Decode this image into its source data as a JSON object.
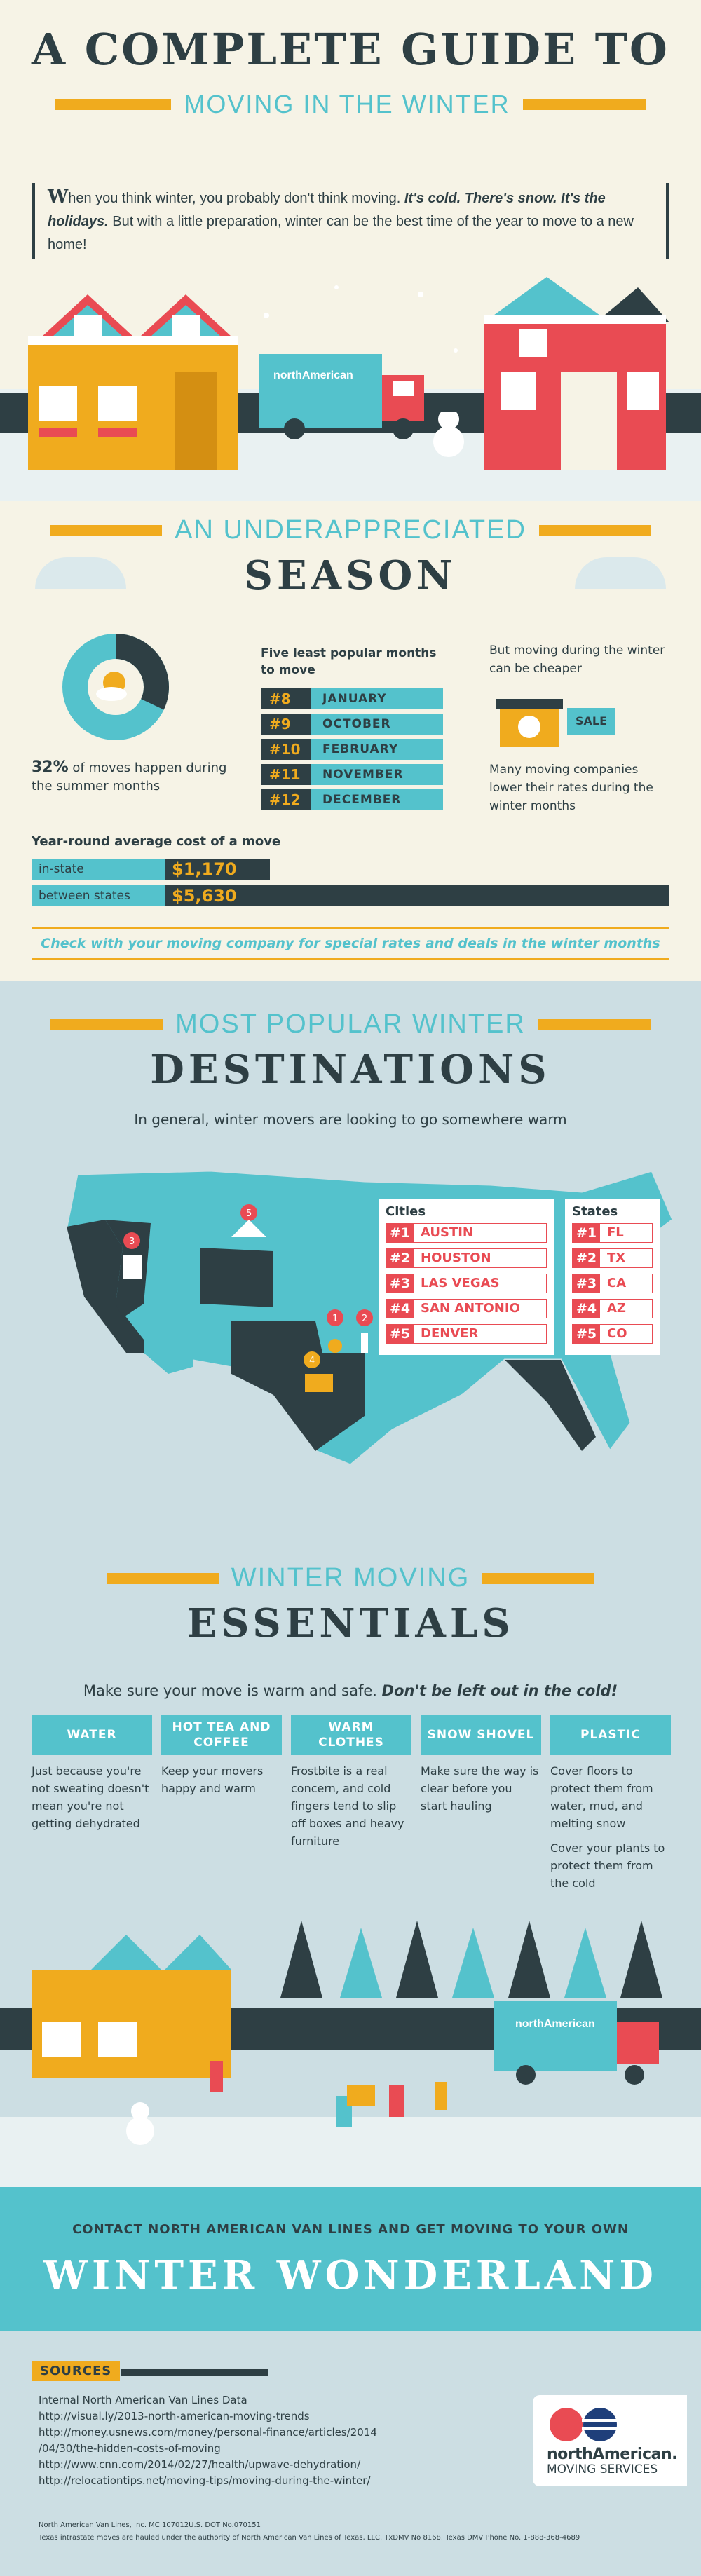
{
  "header": {
    "title": "A COMPLETE GUIDE TO",
    "subtitle": "MOVING IN THE WINTER"
  },
  "intro": {
    "drop_cap": "W",
    "lead": "hen you think winter, you probably don't think moving.",
    "emph": "It's cold. There's snow. It's the holidays.",
    "rest": "But with a little preparation, winter can be the best time of the year to move to a new home!"
  },
  "truck_brand": "northAmerican",
  "season": {
    "heading_line1": "AN UNDERAPPRECIATED",
    "heading_line2": "SEASON",
    "summer_pct": "32%",
    "summer_pct_value": 32,
    "summer_text": "of moves happen during the summer months",
    "months_title": "Five least popular months to move",
    "months": [
      {
        "rank": "#8",
        "name": "JANUARY"
      },
      {
        "rank": "#9",
        "name": "OCTOBER"
      },
      {
        "rank": "#10",
        "name": "FEBRUARY"
      },
      {
        "rank": "#11",
        "name": "NOVEMBER"
      },
      {
        "rank": "#12",
        "name": "DECEMBER"
      }
    ],
    "cheaper_text": "But moving during the winter can be cheaper",
    "sale_tag": "SALE",
    "lower_rates_text": "Many moving companies lower their rates during the winter months",
    "cost_title": "Year-round average cost of a move",
    "costs": [
      {
        "label": "in-state",
        "value": "$1,170",
        "amount": 1170
      },
      {
        "label": "between states",
        "value": "$5,630",
        "amount": 5630
      }
    ],
    "check_note": "Check with your moving company for special rates and deals in the winter months"
  },
  "destinations": {
    "heading_line1": "MOST POPULAR WINTER",
    "heading_line2": "DESTINATIONS",
    "intro": "In general, winter movers are looking to go somewhere warm",
    "cities_title": "Cities",
    "cities": [
      {
        "rank": "#1",
        "name": "AUSTIN"
      },
      {
        "rank": "#2",
        "name": "HOUSTON"
      },
      {
        "rank": "#3",
        "name": "LAS VEGAS"
      },
      {
        "rank": "#4",
        "name": "SAN ANTONIO"
      },
      {
        "rank": "#5",
        "name": "DENVER"
      }
    ],
    "states_title": "States",
    "states": [
      {
        "rank": "#1",
        "name": "FL"
      },
      {
        "rank": "#2",
        "name": "TX"
      },
      {
        "rank": "#3",
        "name": "CA"
      },
      {
        "rank": "#4",
        "name": "AZ"
      },
      {
        "rank": "#5",
        "name": "CO"
      }
    ],
    "pins": [
      "1",
      "2",
      "3",
      "4",
      "5"
    ]
  },
  "essentials": {
    "heading_line1": "WINTER MOVING",
    "heading_line2": "ESSENTIALS",
    "intro_lead": "Make sure your move is warm and safe.",
    "intro_emph": "Don't be left out in the cold!",
    "columns": [
      {
        "title": "WATER",
        "body": [
          "Just because you're not sweating doesn't mean you're not getting dehydrated"
        ]
      },
      {
        "title": "HOT TEA AND COFFEE",
        "body": [
          "Keep your movers happy and warm"
        ]
      },
      {
        "title": "WARM CLOTHES",
        "body": [
          "Frostbite is a real concern, and cold fingers tend to slip off boxes and heavy furniture"
        ]
      },
      {
        "title": "SNOW SHOVEL",
        "body": [
          "Make sure the way is clear before you start hauling"
        ]
      },
      {
        "title": "PLASTIC",
        "body": [
          "Cover floors to protect them from water, mud, and melting snow",
          "Cover your plants to protect them from the cold"
        ]
      }
    ]
  },
  "cta": {
    "line": "CONTACT NORTH AMERICAN VAN LINES AND GET MOVING TO YOUR OWN",
    "big": "WINTER WONDERLAND"
  },
  "sources": {
    "label": "SOURCES",
    "items": [
      "Internal North American Van Lines Data",
      "http://visual.ly/2013-north-american-moving-trends",
      "http://money.usnews.com/money/personal-finance/articles/2014",
      "/04/30/the-hidden-costs-of-moving",
      "http://www.cnn.com/2014/02/27/health/upwave-dehydration/",
      "http://relocationtips.net/moving-tips/moving-during-the-winter/"
    ],
    "logo_name": "northAmerican.",
    "logo_sub": "MOVING SERVICES",
    "fine1": "North American Van Lines, Inc. MC 107012U.S. DOT No.070151",
    "fine2": "Texas intrastate moves are hauled under the authority of North American Van Lines of Texas, LLC. TxDMV No 8168. Texas DMV Phone No. 1-888-368-4689"
  },
  "colors": {
    "teal": "#54c2cc",
    "dark": "#2e3f44",
    "orange": "#f0ab1e",
    "red": "#e94b53",
    "cream": "#f6f3e6",
    "ice": "#ccdee3"
  }
}
